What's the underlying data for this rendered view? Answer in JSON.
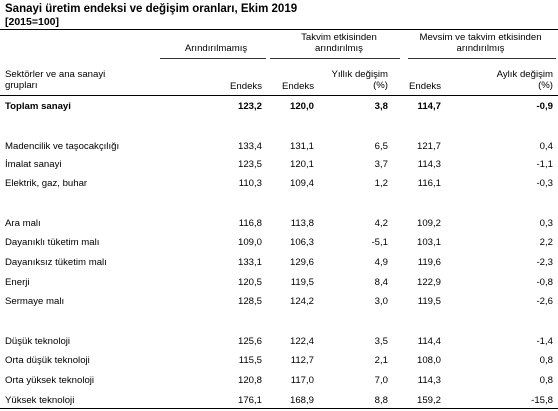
{
  "title": "Sanayi üretim endeksi  ve değişim oranları, Ekim 2019",
  "base": "[2015=100]",
  "headers": {
    "group_unadjusted": "Arındırılmamış",
    "group_calendar": "Takvim etkisinden arındırılmış",
    "group_seasonal": "Mevsim ve takvim etkisinden arındırılmış",
    "row_label": "Sektörler ve ana sanayi grupları",
    "col_index_0": "Endeks",
    "col_index_1": "Endeks",
    "col_annual": "Yıllık değişim (%)",
    "col_index_2": "Endeks",
    "col_monthly": "Aylık değişim (%)"
  },
  "rows": [
    {
      "name": "Toplam sanayi",
      "v": [
        "123,2",
        "120,0",
        "3,8",
        "114,7",
        "-0,9"
      ],
      "bold": true
    },
    {
      "name": "Madencilik ve taşocakçılığı",
      "v": [
        "133,4",
        "131,1",
        "6,5",
        "121,7",
        "0,4"
      ]
    },
    {
      "name": "İmalat sanayi",
      "v": [
        "123,5",
        "120,1",
        "3,7",
        "114,3",
        "-1,1"
      ]
    },
    {
      "name": "Elektrik, gaz, buhar",
      "v": [
        "110,3",
        "109,4",
        "1,2",
        "116,1",
        "-0,3"
      ]
    },
    {
      "name": "Ara malı",
      "v": [
        "116,8",
        "113,8",
        "4,2",
        "109,2",
        "0,3"
      ]
    },
    {
      "name": "Dayanıklı tüketim malı",
      "v": [
        "109,0",
        "106,3",
        "-5,1",
        "103,1",
        "2,2"
      ]
    },
    {
      "name": "Dayanıksız tüketim malı",
      "v": [
        "133,1",
        "129,6",
        "4,9",
        "119,6",
        "-2,3"
      ]
    },
    {
      "name": "Enerji",
      "v": [
        "120,5",
        "119,5",
        "8,4",
        "122,9",
        "-0,8"
      ]
    },
    {
      "name": "Sermaye malı",
      "v": [
        "128,5",
        "124,2",
        "3,0",
        "119,5",
        "-2,6"
      ]
    },
    {
      "name": "Düşük teknoloji",
      "v": [
        "125,6",
        "122,4",
        "3,5",
        "114,4",
        "-1,4"
      ]
    },
    {
      "name": "Orta düşük teknoloji",
      "v": [
        "115,5",
        "112,7",
        "2,1",
        "108,0",
        "0,8"
      ]
    },
    {
      "name": "Orta yüksek teknoloji",
      "v": [
        "120,8",
        "117,0",
        "7,0",
        "114,3",
        "0,8"
      ]
    },
    {
      "name": "Yüksek teknoloji",
      "v": [
        "176,1",
        "168,9",
        "8,8",
        "159,2",
        "-15,8"
      ]
    }
  ]
}
